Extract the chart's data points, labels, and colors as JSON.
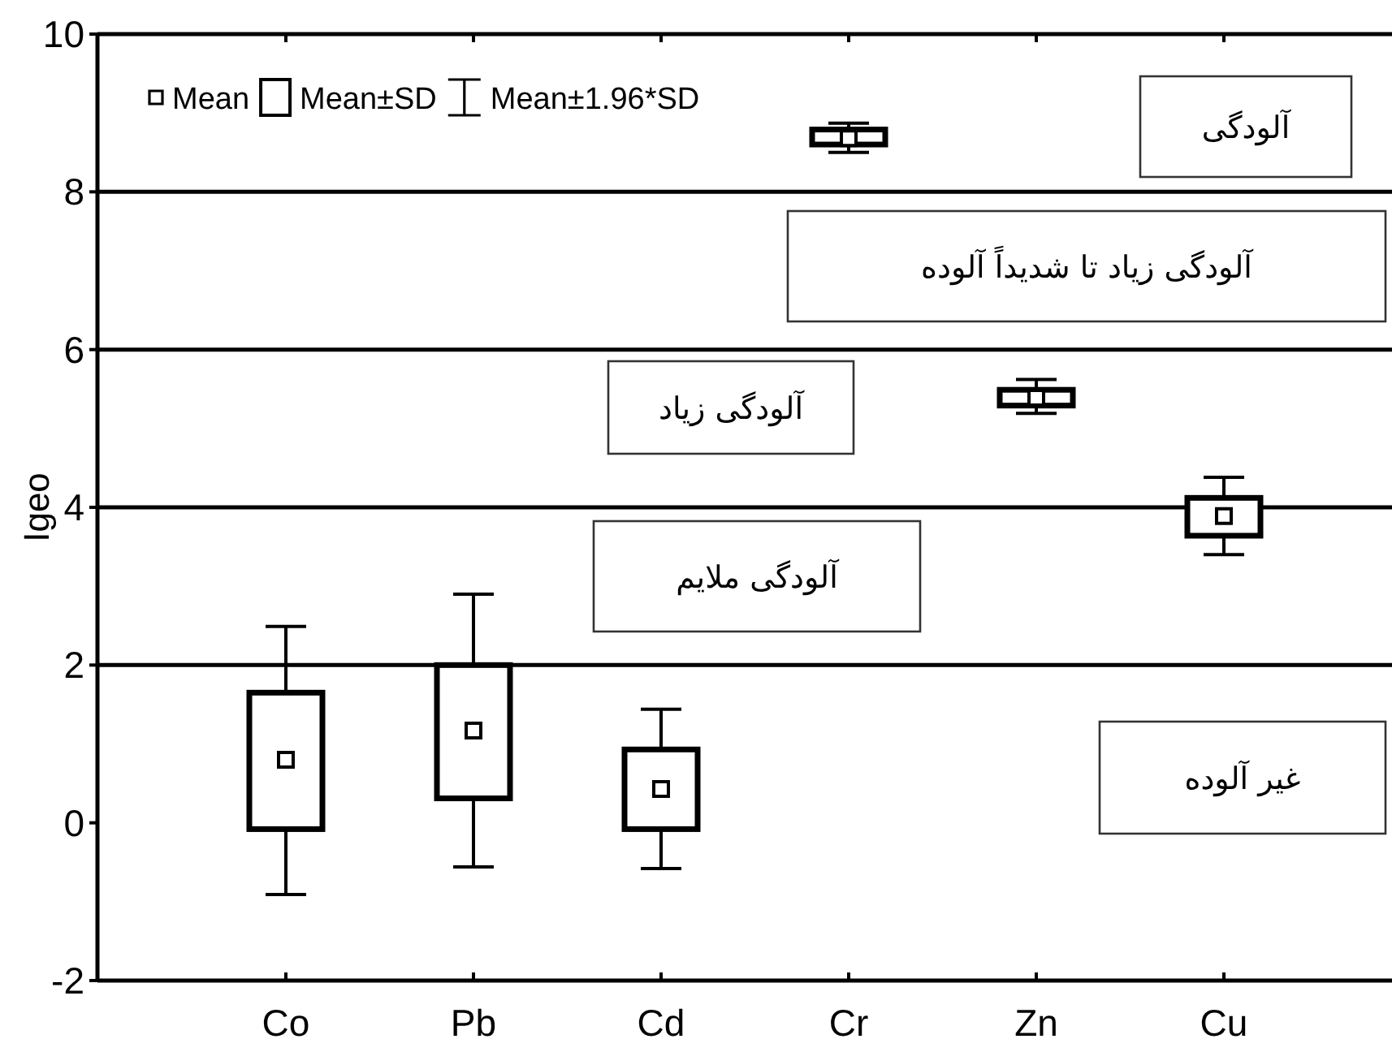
{
  "chart_data": {
    "type": "bar",
    "ylabel": "Igeo",
    "categories": [
      "Co",
      "Pb",
      "Cd",
      "Cr",
      "Zn",
      "Cu"
    ],
    "series": [
      {
        "name": "Mean",
        "type": "scatter",
        "marker": "square",
        "color": "#000000",
        "values": [
          0.8,
          1.17,
          0.43,
          8.68,
          5.39,
          3.89
        ]
      },
      {
        "name": "Mean±SD",
        "color": "#000000",
        "base": [
          -0.08,
          0.31,
          -0.08,
          8.6,
          5.29,
          3.64
        ],
        "values": [
          1.73,
          1.69,
          1.01,
          0.19,
          0.2,
          0.48
        ],
        "errors": [
          [
            -0.91,
            2.49
          ],
          [
            -0.56,
            2.9
          ],
          [
            -0.58,
            1.44
          ],
          [
            8.5,
            8.87
          ],
          [
            5.19,
            5.62
          ],
          [
            3.4,
            4.38
          ]
        ]
      },
      {
        "name": "Mean±1.96*SD",
        "type": "scatter",
        "marker": "none",
        "color": "#000000",
        "values": [
          null,
          null,
          null,
          null,
          null,
          null
        ]
      }
    ],
    "ylim": [
      -2,
      10
    ],
    "yticks": [
      -2,
      0,
      2,
      4,
      6,
      8,
      10
    ],
    "ref_lines": [
      {
        "axis": "y",
        "value": 2
      },
      {
        "axis": "y",
        "value": 4
      },
      {
        "axis": "y",
        "value": 6
      },
      {
        "axis": "y",
        "value": 8
      }
    ],
    "annotations": [
      "غیر آلوده",
      "آلودگی ملایم",
      "آلودگی زیاد",
      "آلودگی زیاد تا شدیداً آلوده",
      "آلودگی"
    ],
    "legend": "top left"
  }
}
